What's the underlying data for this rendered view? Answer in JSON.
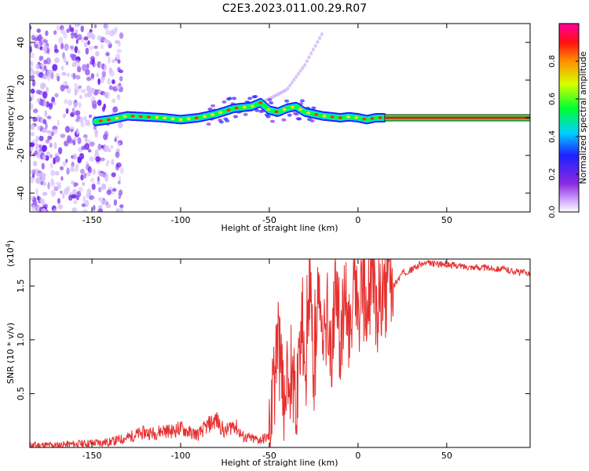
{
  "title": "C2E3.2023.011.00.29.R07",
  "chart_data": [
    {
      "type": "heatmap",
      "name": "spectrogram",
      "xlabel": "Height of straight line (km)",
      "ylabel": "Frequency (Hz)",
      "xlim": [
        -185,
        97
      ],
      "ylim": [
        -50,
        50
      ],
      "xticks": [
        -150,
        -100,
        -50,
        0,
        50
      ],
      "xtick_labels": [
        "-150",
        "-100",
        "-50",
        "0",
        "50"
      ],
      "yticks": [
        -40,
        -20,
        0,
        20,
        40
      ],
      "ytick_labels": [
        "-40",
        "-20",
        "0",
        "20",
        "40"
      ],
      "ridge": {
        "description": "main frequency ridge (height km, frequency Hz)",
        "x": [
          -148,
          -140,
          -130,
          -120,
          -110,
          -100,
          -90,
          -80,
          -70,
          -60,
          -55,
          -50,
          -45,
          -40,
          -35,
          -30,
          -25,
          -20,
          -15,
          -10,
          -5,
          0,
          5,
          10,
          15,
          97
        ],
        "y": [
          -2,
          -1,
          1,
          0.5,
          0,
          -1,
          0,
          2,
          5,
          6,
          8,
          4,
          3,
          5,
          6,
          3,
          2,
          1,
          0.5,
          0,
          0.5,
          0,
          -1,
          0,
          0,
          0
        ]
      },
      "upper_branch": {
        "x": [
          -60,
          -50,
          -40,
          -30,
          -20
        ],
        "y": [
          6,
          10,
          15,
          28,
          45
        ]
      },
      "noise_region_km": [
        -185,
        -133
      ],
      "colorbar": {
        "label": "Normalized spectral amplitude",
        "range": [
          0,
          1
        ],
        "ticks": [
          0.0,
          0.2,
          0.4,
          0.6,
          0.8
        ],
        "tick_labels": [
          "0.0",
          "0.2",
          "0.4",
          "0.6",
          "0.8"
        ],
        "colors": [
          "#ffffff",
          "#a050ff",
          "#2020ff",
          "#00e0ff",
          "#00ff40",
          "#e0ff00",
          "#ff8000",
          "#ff0000",
          "#ff00a0"
        ]
      }
    },
    {
      "type": "line",
      "name": "snr",
      "xlabel": "Height of straight line (km)",
      "ylabel": "SNR (10 * v/v)",
      "scale_label": "(x10",
      "scale_exp": "4",
      "scale_close": ")",
      "xlim": [
        -185,
        97
      ],
      "ylim": [
        0,
        1.75
      ],
      "xticks": [
        -150,
        -100,
        -50,
        0,
        50
      ],
      "xtick_labels": [
        "-150",
        "-100",
        "-50",
        "0",
        "50"
      ],
      "yticks": [
        0.5,
        1.0,
        1.5
      ],
      "ytick_labels": [
        "0.5",
        "1.0",
        "1.5"
      ],
      "series": [
        {
          "name": "SNR",
          "color": "#e53030",
          "x": [
            -185,
            -170,
            -160,
            -150,
            -140,
            -135,
            -130,
            -125,
            -120,
            -115,
            -110,
            -105,
            -100,
            -95,
            -90,
            -85,
            -80,
            -75,
            -70,
            -65,
            -60,
            -55,
            -50,
            -47,
            -45,
            -42,
            -40,
            -37,
            -35,
            -32,
            -30,
            -27,
            -25,
            -22,
            -20,
            -17,
            -15,
            -12,
            -10,
            -7,
            -5,
            -2,
            0,
            3,
            5,
            8,
            10,
            13,
            15,
            18,
            20,
            25,
            30,
            35,
            40,
            50,
            60,
            70,
            80,
            90,
            97
          ],
          "y": [
            0.02,
            0.02,
            0.03,
            0.04,
            0.05,
            0.07,
            0.09,
            0.12,
            0.14,
            0.13,
            0.16,
            0.15,
            0.18,
            0.14,
            0.12,
            0.2,
            0.26,
            0.14,
            0.22,
            0.1,
            0.08,
            0.07,
            0.1,
            0.6,
            1.05,
            0.35,
            0.55,
            0.8,
            0.3,
            1.2,
            0.45,
            1.65,
            0.6,
            1.45,
            0.85,
            1.3,
            0.7,
            1.55,
            0.95,
            1.35,
            1.05,
            1.5,
            1.1,
            1.45,
            1.2,
            1.6,
            1.25,
            1.4,
            1.35,
            1.55,
            1.5,
            1.62,
            1.65,
            1.7,
            1.71,
            1.7,
            1.68,
            1.67,
            1.66,
            1.63,
            1.62
          ]
        }
      ]
    }
  ]
}
